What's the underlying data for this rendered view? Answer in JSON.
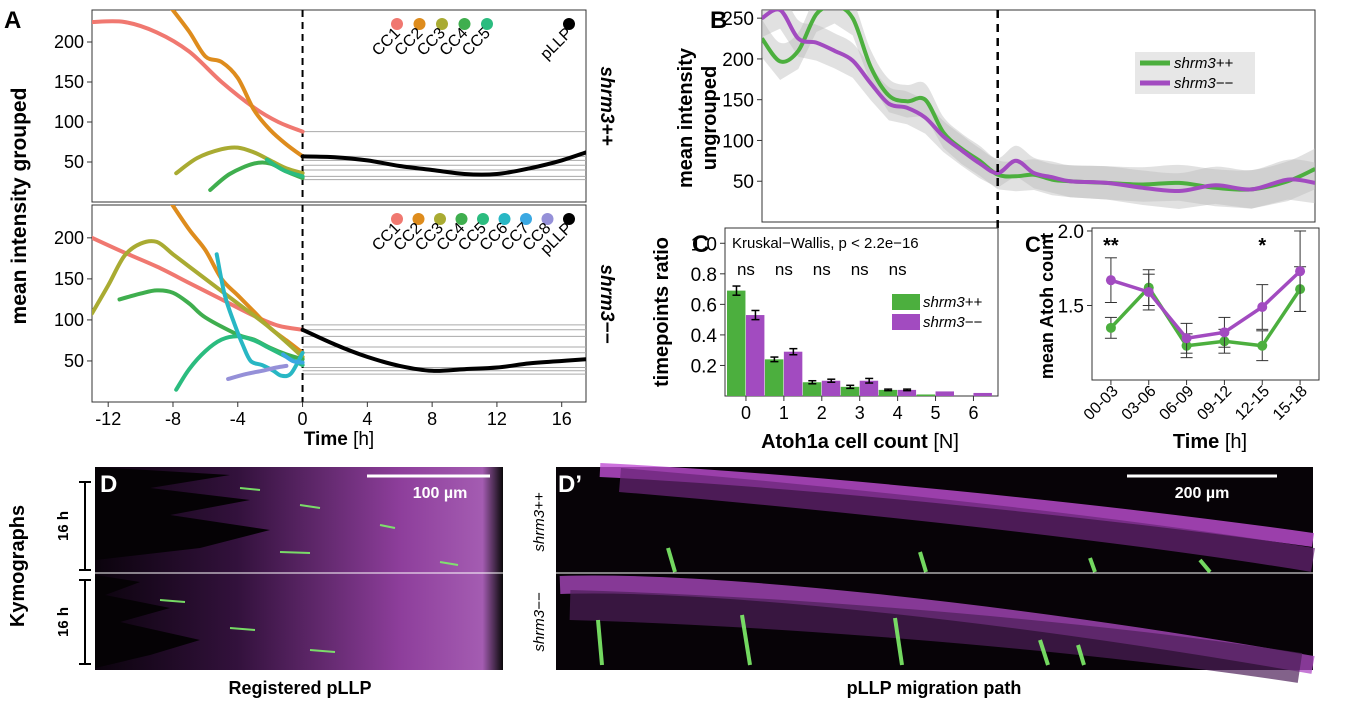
{
  "panels": {
    "A": "A",
    "B": "B",
    "C": "C",
    "Cp": "C’",
    "D": "D",
    "Dp": "D’"
  },
  "colors": {
    "green": "#4caf3e",
    "purple": "#a24bc0",
    "magenta": "#c33cd6",
    "cc1": "#f07870",
    "cc2": "#de8c1d",
    "cc3": "#a9ab32",
    "cc4": "#3fae4e",
    "cc5": "#2bbc7f",
    "cc6": "#28b7c4",
    "cc7": "#3aa8e2",
    "cc8": "#9590d8",
    "pllp": "#000000"
  },
  "chart_data": [
    {
      "id": "A-top",
      "type": "line",
      "ylabel": "mean intensity grouped",
      "strip_label": "shrm3++",
      "xlim": [
        -13,
        17.5
      ],
      "ylim": [
        0,
        240
      ],
      "yticks": [
        50,
        100,
        150,
        200
      ],
      "legend": [
        "CC1",
        "CC2",
        "CC3",
        "CC4",
        "CC5",
        "pLLP"
      ],
      "hlines": [
        88,
        57,
        52,
        46,
        40,
        32,
        28
      ],
      "series": [
        {
          "name": "CC1",
          "color": "#f07870",
          "points": [
            [
              -13,
              225
            ],
            [
              -11,
              225
            ],
            [
              -9,
              212
            ],
            [
              -7,
              188
            ],
            [
              -5,
              150
            ],
            [
              -3,
              118
            ],
            [
              -1.5,
              100
            ],
            [
              0,
              88
            ]
          ]
        },
        {
          "name": "CC2",
          "color": "#de8c1d",
          "points": [
            [
              -8.2,
              245
            ],
            [
              -7,
              213
            ],
            [
              -6,
              182
            ],
            [
              -5,
              175
            ],
            [
              -4,
              155
            ],
            [
              -3,
              115
            ],
            [
              -2,
              90
            ],
            [
              -1,
              72
            ],
            [
              0,
              57
            ]
          ]
        },
        {
          "name": "CC3",
          "color": "#a9ab32",
          "points": [
            [
              -7.8,
              36
            ],
            [
              -6.5,
              55
            ],
            [
              -5,
              66
            ],
            [
              -4,
              68
            ],
            [
              -3,
              62
            ],
            [
              -2,
              52
            ],
            [
              -1,
              42
            ],
            [
              0,
              36
            ]
          ]
        },
        {
          "name": "CC4",
          "color": "#3fae4e",
          "points": [
            [
              -5.7,
              15
            ],
            [
              -4.5,
              35
            ],
            [
              -3,
              48
            ],
            [
              -2,
              48
            ],
            [
              -1,
              38
            ],
            [
              0,
              30
            ]
          ]
        },
        {
          "name": "CC5",
          "color": "#2bbc7f",
          "points": [
            [
              -2.2,
              53
            ],
            [
              -1.2,
              40
            ],
            [
              0,
              32
            ]
          ]
        },
        {
          "name": "pLLP",
          "color": "#000000",
          "points": [
            [
              0,
              57
            ],
            [
              2,
              56
            ],
            [
              4,
              52
            ],
            [
              6,
              45
            ],
            [
              8,
              40
            ],
            [
              10,
              35
            ],
            [
              12,
              35
            ],
            [
              14,
              42
            ],
            [
              16,
              52
            ],
            [
              17.5,
              62
            ]
          ]
        }
      ]
    },
    {
      "id": "A-bottom",
      "type": "line",
      "xlabel": "Time",
      "xunit": "[h]",
      "strip_label": "shrm3−−",
      "xlim": [
        -13,
        17.5
      ],
      "ylim": [
        0,
        240
      ],
      "xticks": [
        -12,
        -8,
        -4,
        0,
        4,
        8,
        12,
        16
      ],
      "yticks": [
        50,
        100,
        150,
        200
      ],
      "legend": [
        "CC1",
        "CC2",
        "CC3",
        "CC4",
        "CC5",
        "CC6",
        "CC7",
        "CC8",
        "pLLP"
      ],
      "hlines": [
        94,
        88,
        80,
        67,
        60,
        42,
        38,
        34
      ],
      "series": [
        {
          "name": "CC1",
          "color": "#f07870",
          "points": [
            [
              -13,
              200
            ],
            [
              -11,
              182
            ],
            [
              -9,
              165
            ],
            [
              -7,
              145
            ],
            [
              -5,
              125
            ],
            [
              -3,
              105
            ],
            [
              -1.5,
              93
            ],
            [
              0,
              88
            ]
          ]
        },
        {
          "name": "CC2",
          "color": "#de8c1d",
          "points": [
            [
              -8.2,
              245
            ],
            [
              -7,
              210
            ],
            [
              -6,
              185
            ],
            [
              -5,
              150
            ],
            [
              -4,
              130
            ],
            [
              -3,
              110
            ],
            [
              -2,
              90
            ],
            [
              -1,
              75
            ],
            [
              0,
              60
            ]
          ]
        },
        {
          "name": "CC3",
          "color": "#a9ab32",
          "points": [
            [
              -13,
              108
            ],
            [
              -12,
              142
            ],
            [
              -11,
              178
            ],
            [
              -10,
              193
            ],
            [
              -9,
              195
            ],
            [
              -8,
              180
            ],
            [
              -7,
              165
            ],
            [
              -6,
              150
            ],
            [
              -4,
              120
            ],
            [
              -2,
              90
            ],
            [
              0,
              55
            ]
          ]
        },
        {
          "name": "CC4",
          "color": "#3fae4e",
          "points": [
            [
              -11.3,
              125
            ],
            [
              -10,
              132
            ],
            [
              -9,
              136
            ],
            [
              -8,
              133
            ],
            [
              -7,
              120
            ],
            [
              -6,
              103
            ],
            [
              -4,
              82
            ],
            [
              -3,
              76
            ],
            [
              -2,
              66
            ],
            [
              -1,
              58
            ],
            [
              0,
              52
            ]
          ]
        },
        {
          "name": "CC5",
          "color": "#2bbc7f",
          "points": [
            [
              -7.8,
              15
            ],
            [
              -7,
              40
            ],
            [
              -6,
              62
            ],
            [
              -5,
              76
            ],
            [
              -4,
              80
            ],
            [
              -3,
              75
            ],
            [
              -2,
              65
            ],
            [
              -1,
              55
            ],
            [
              0,
              45
            ]
          ]
        },
        {
          "name": "CC6",
          "color": "#28b7c4",
          "points": [
            [
              -5.3,
              180
            ],
            [
              -4.8,
              130
            ],
            [
              -4.2,
              95
            ],
            [
              -3.7,
              70
            ],
            [
              -3.2,
              50
            ],
            [
              -2.5,
              45
            ],
            [
              -1.8,
              38
            ],
            [
              -1.3,
              32
            ],
            [
              -0.7,
              35
            ],
            [
              0,
              60
            ]
          ]
        },
        {
          "name": "CC7",
          "color": "#3aa8e2",
          "points": [
            [
              -1.2,
              58
            ],
            [
              -0.6,
              50
            ],
            [
              0,
              48
            ]
          ]
        },
        {
          "name": "CC8",
          "color": "#9590d8",
          "points": [
            [
              -4.6,
              28
            ],
            [
              -3.5,
              34
            ],
            [
              -2.5,
              38
            ],
            [
              -1.6,
              42
            ],
            [
              -1,
              44
            ]
          ]
        },
        {
          "name": "pLLP",
          "color": "#000000",
          "points": [
            [
              0,
              88
            ],
            [
              2,
              70
            ],
            [
              4,
              55
            ],
            [
              6,
              44
            ],
            [
              8,
              38
            ],
            [
              10,
              40
            ],
            [
              12,
              42
            ],
            [
              14,
              47
            ],
            [
              16,
              50
            ],
            [
              17.5,
              52
            ]
          ]
        }
      ]
    },
    {
      "id": "B",
      "type": "line",
      "ylabel": "mean intensity ungrouped",
      "xlim": [
        -13,
        17.5
      ],
      "ylim": [
        0,
        260
      ],
      "yticks": [
        50,
        100,
        150,
        200,
        250
      ],
      "legend": [
        {
          "name": "shrm3++",
          "color": "#4caf3e"
        },
        {
          "name": "shrm3−−",
          "color": "#a24bc0"
        }
      ],
      "series": [
        {
          "name": "shrm3++",
          "color": "#4caf3e",
          "points": [
            [
              -13,
              225
            ],
            [
              -12,
              197
            ],
            [
              -11,
              210
            ],
            [
              -10,
              255
            ],
            [
              -9,
              265
            ],
            [
              -8,
              250
            ],
            [
              -7,
              190
            ],
            [
              -6,
              155
            ],
            [
              -5,
              148
            ],
            [
              -4,
              150
            ],
            [
              -3,
              110
            ],
            [
              -2,
              90
            ],
            [
              -1,
              75
            ],
            [
              0,
              58
            ],
            [
              1,
              56
            ],
            [
              2,
              58
            ],
            [
              3,
              52
            ],
            [
              4,
              50
            ],
            [
              6,
              48
            ],
            [
              8,
              46
            ],
            [
              10,
              48
            ],
            [
              12,
              42
            ],
            [
              14,
              40
            ],
            [
              16,
              50
            ],
            [
              17.5,
              65
            ]
          ]
        },
        {
          "name": "shrm3−−",
          "color": "#a24bc0",
          "points": [
            [
              -13,
              250
            ],
            [
              -12,
              260
            ],
            [
              -11,
              225
            ],
            [
              -10,
              220
            ],
            [
              -9,
              210
            ],
            [
              -8,
              198
            ],
            [
              -7,
              170
            ],
            [
              -6,
              145
            ],
            [
              -5,
              140
            ],
            [
              -4,
              128
            ],
            [
              -3,
              105
            ],
            [
              -2,
              88
            ],
            [
              -1,
              72
            ],
            [
              0,
              60
            ],
            [
              1,
              75
            ],
            [
              2,
              60
            ],
            [
              3,
              55
            ],
            [
              4,
              50
            ],
            [
              6,
              48
            ],
            [
              8,
              42
            ],
            [
              10,
              38
            ],
            [
              12,
              45
            ],
            [
              14,
              40
            ],
            [
              16,
              52
            ],
            [
              17.5,
              48
            ]
          ]
        }
      ]
    },
    {
      "id": "C",
      "type": "bar",
      "annotation": "Kruskal−Wallis, p < 2.2e−16",
      "significance": [
        "ns",
        "ns",
        "ns",
        "ns",
        "ns"
      ],
      "xlabel": "Atoh1a cell count",
      "xunit": "[N]",
      "ylabel": "timepoints ratio",
      "ylim": [
        0,
        1.1
      ],
      "yticks": [
        "0.2",
        "0.4",
        "0.6",
        "0.8",
        "1.0"
      ],
      "categories": [
        "0",
        "1",
        "2",
        "3",
        "4",
        "5",
        "6"
      ],
      "legend": [
        {
          "name": "shrm3++",
          "color": "#4caf3e"
        },
        {
          "name": "shrm3−−",
          "color": "#a24bc0"
        }
      ],
      "series": [
        {
          "name": "shrm3++",
          "color": "#4caf3e",
          "values": [
            0.69,
            0.24,
            0.09,
            0.06,
            0.04,
            0.01,
            0.0
          ],
          "err": [
            0.03,
            0.015,
            0.01,
            0.01,
            0.005,
            0.0,
            0.0
          ]
        },
        {
          "name": "shrm3−−",
          "color": "#a24bc0",
          "values": [
            0.53,
            0.29,
            0.1,
            0.1,
            0.04,
            0.03,
            0.02
          ],
          "err": [
            0.03,
            0.02,
            0.01,
            0.015,
            0.005,
            0.0,
            0.0
          ]
        }
      ]
    },
    {
      "id": "Cp",
      "type": "line",
      "xlabel": "Time",
      "xunit": "[h]",
      "ylabel": "mean Atoh count",
      "ylim": [
        1.0,
        2.02
      ],
      "yticks": [
        "1.5",
        "2.0"
      ],
      "categories": [
        "00-03",
        "03-06",
        "06-09",
        "09-12",
        "12-15",
        "15-18"
      ],
      "significance": [
        {
          "category": "00-03",
          "mark": "**"
        },
        {
          "category": "12-15",
          "mark": "*"
        }
      ],
      "series": [
        {
          "name": "shrm3++",
          "color": "#4caf3e",
          "values": [
            1.35,
            1.62,
            1.23,
            1.26,
            1.23,
            1.61
          ],
          "err": [
            0.07,
            0.12,
            0.08,
            0.08,
            0.1,
            0.15
          ]
        },
        {
          "name": "shrm3−−",
          "color": "#a24bc0",
          "values": [
            1.67,
            1.59,
            1.28,
            1.32,
            1.49,
            1.73
          ],
          "err": [
            0.15,
            0.12,
            0.1,
            0.1,
            0.15,
            0.27
          ]
        }
      ]
    }
  ],
  "kymographs": {
    "side_label": "Kymographs",
    "duration_label": "16 h",
    "D_scalebar": "100 µm",
    "Dp_scalebar": "200 µm",
    "D_caption": "Registered pLLP",
    "Dp_caption": "pLLP migration path",
    "strip_top": "shrm3++",
    "strip_bottom": "shrm3−−"
  }
}
